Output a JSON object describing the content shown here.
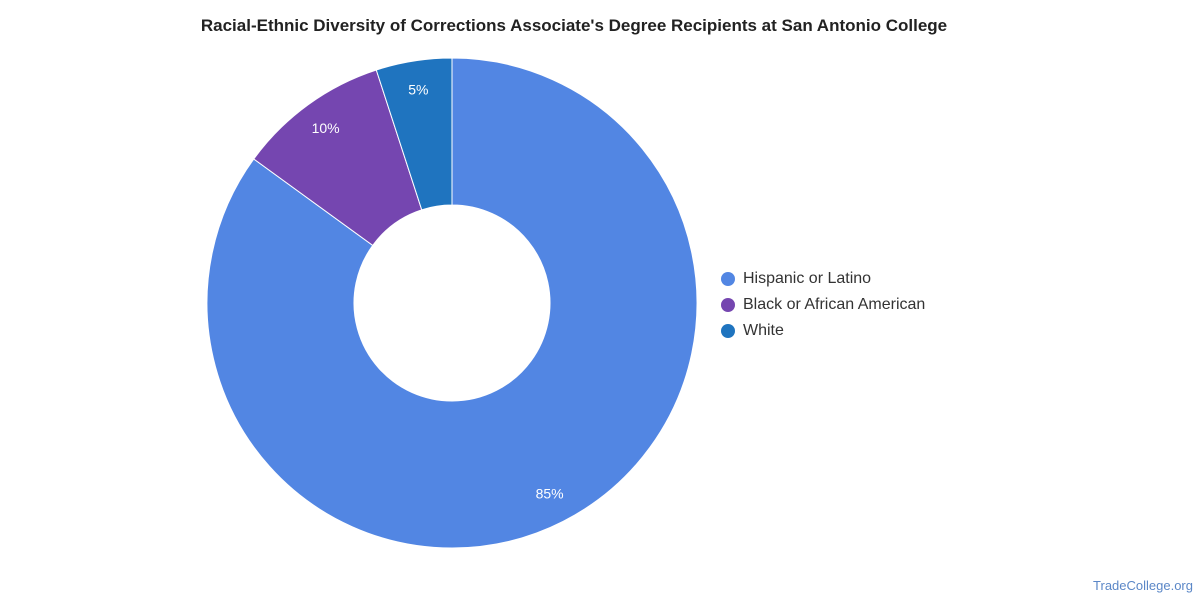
{
  "chart_data": {
    "type": "pie",
    "title": "Racial-Ethnic Diversity of Corrections Associate's Degree Recipients at San Antonio College",
    "donut": true,
    "legend_position": "right",
    "slices": [
      {
        "label": "Hispanic or Latino",
        "value": 85,
        "display": "85%",
        "color": "#5286e3"
      },
      {
        "label": "Black or African American",
        "value": 10,
        "display": "10%",
        "color": "#7546b0"
      },
      {
        "label": "White",
        "value": 5,
        "display": "5%",
        "color": "#1f74bf"
      }
    ]
  },
  "watermark": "TradeCollege.org"
}
